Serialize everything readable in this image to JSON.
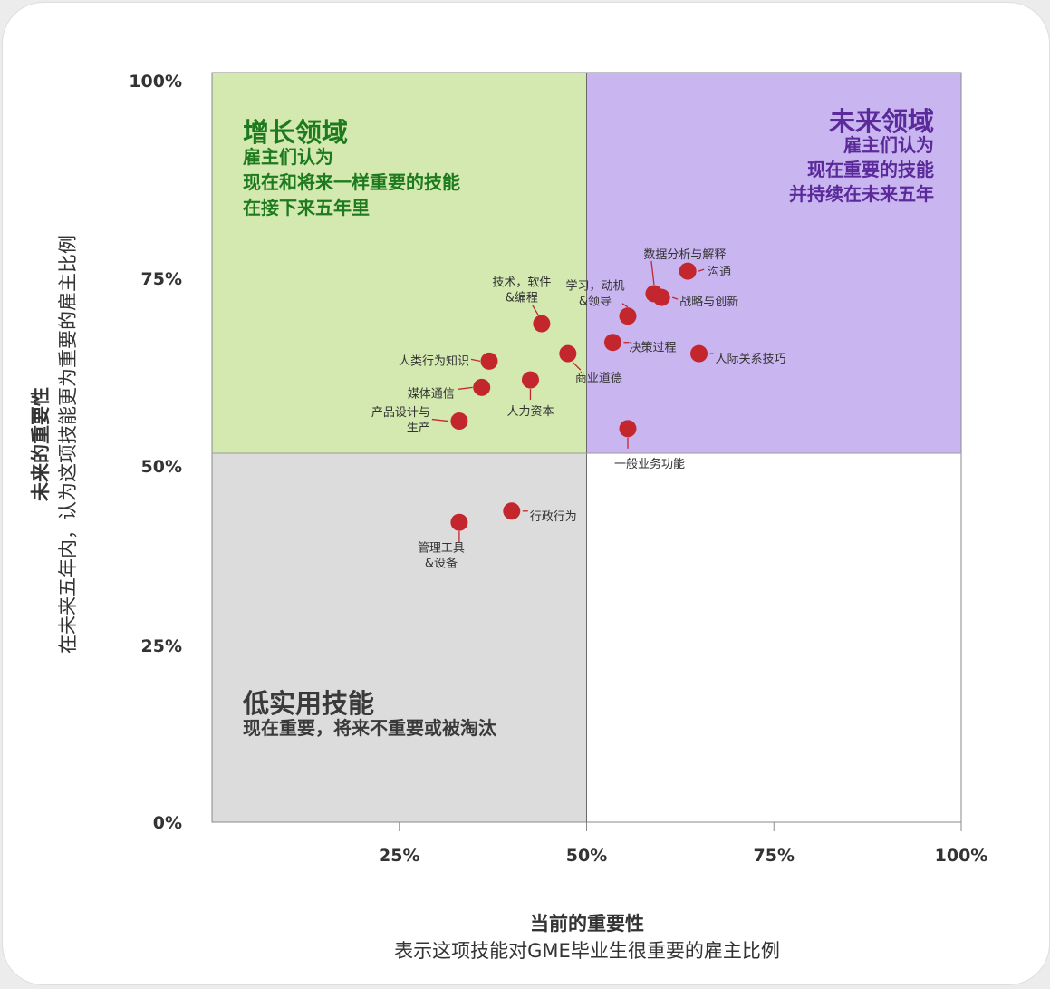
{
  "chart_data": {
    "type": "scatter",
    "xlabel": "当前的重要性",
    "xlabel_sub": "表示这项技能对GME毕业生很重要的雇主比例",
    "ylabel": "未来的重要性",
    "ylabel_sub": "在未来五年内，认为这项技能更为重要的雇主比例",
    "xlim": [
      0,
      100
    ],
    "ylim": [
      0,
      100
    ],
    "x_ticks": [
      "25%",
      "50%",
      "75%",
      "100%"
    ],
    "y_ticks": [
      "0%",
      "25%",
      "50%",
      "75%",
      "100%"
    ],
    "colors": {
      "growth": "#d3e9b0",
      "future": "#c9b5f0",
      "low": "#dcdcdc",
      "point": "#c4262e",
      "growth_text": "#1e7a1e",
      "future_text": "#5b2a9a",
      "low_text": "#3a3a3a"
    },
    "quadrants": {
      "growth": {
        "title": "增长领域",
        "lines": [
          "雇主们认为",
          "现在和将来一样重要的技能",
          "在接下来五年里"
        ]
      },
      "future": {
        "title": "未来领域",
        "lines": [
          "雇主们认为",
          "现在重要的技能",
          "并持续在未来五年"
        ]
      },
      "low": {
        "title": "低实用技能",
        "lines": [
          "现在重要，将来不重要或被淘汰"
        ]
      }
    },
    "points": [
      {
        "label": [
          "沟通"
        ],
        "x": 63.5,
        "y": 73.5
      },
      {
        "label": [
          "数据分析与解释"
        ],
        "x": 59.0,
        "y": 70.5
      },
      {
        "label": [
          "战略与创新"
        ],
        "x": 60.0,
        "y": 70.0
      },
      {
        "label": [
          "学习，动机",
          "&领导"
        ],
        "x": 55.5,
        "y": 67.5
      },
      {
        "label": [
          "技术，软件",
          "&编程"
        ],
        "x": 44.0,
        "y": 66.5
      },
      {
        "label": [
          "决策过程"
        ],
        "x": 53.5,
        "y": 64.0
      },
      {
        "label": [
          "人际关系技巧"
        ],
        "x": 65.0,
        "y": 62.5
      },
      {
        "label": [
          "商业道德"
        ],
        "x": 47.5,
        "y": 62.5
      },
      {
        "label": [
          "人类行为知识"
        ],
        "x": 37.0,
        "y": 61.5
      },
      {
        "label": [
          "人力资本"
        ],
        "x": 42.5,
        "y": 59.0
      },
      {
        "label": [
          "媒体通信"
        ],
        "x": 36.0,
        "y": 58.0
      },
      {
        "label": [
          "产品设计与",
          "生产"
        ],
        "x": 33.0,
        "y": 53.5
      },
      {
        "label": [
          "一般业务功能"
        ],
        "x": 55.5,
        "y": 52.5
      },
      {
        "label": [
          "行政行为"
        ],
        "x": 40.0,
        "y": 41.5
      },
      {
        "label": [
          "管理工具",
          "&设备"
        ],
        "x": 33.0,
        "y": 40.0
      }
    ]
  }
}
